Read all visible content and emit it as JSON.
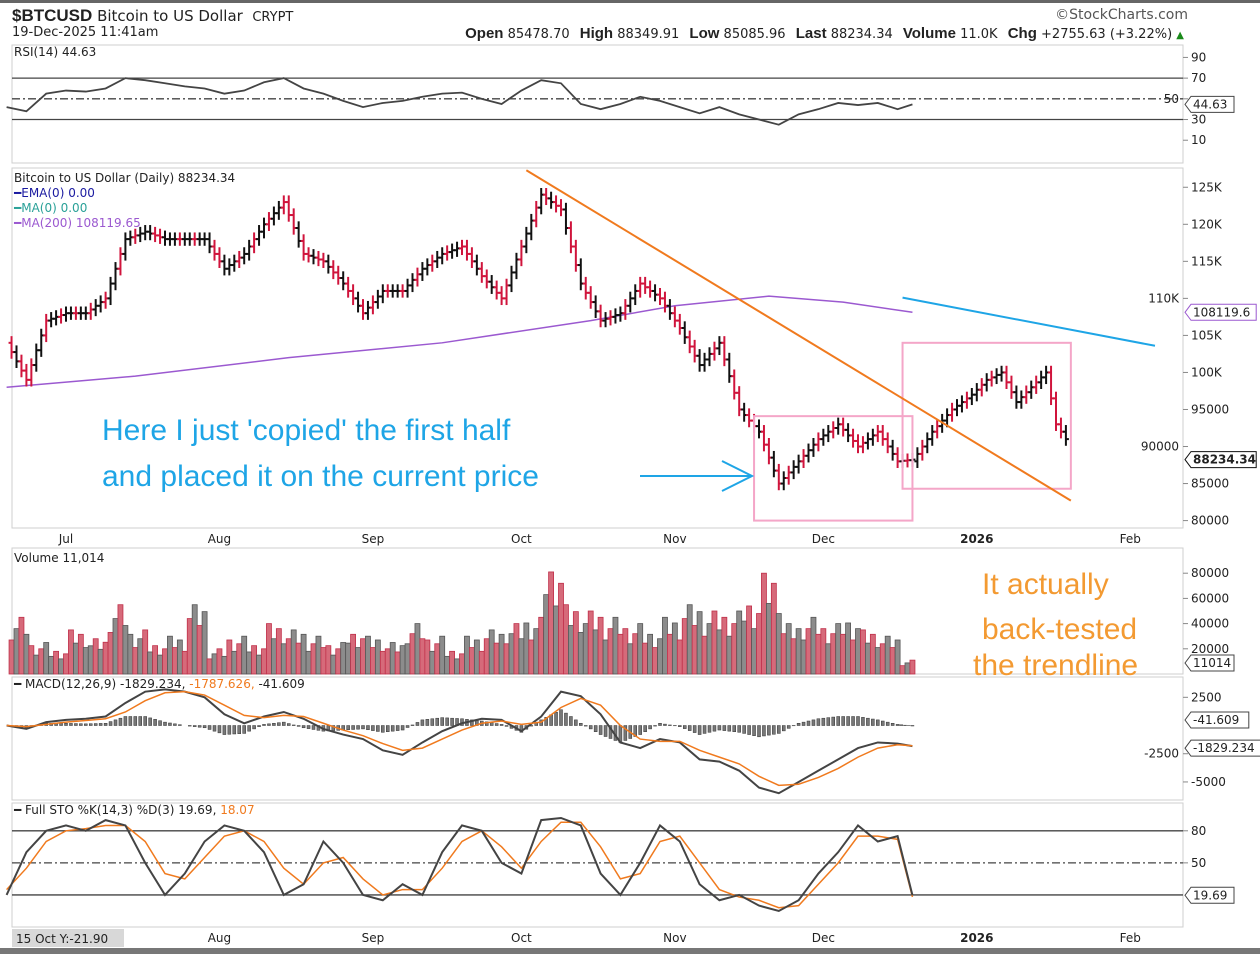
{
  "header": {
    "symbol": "$BTCUSD",
    "name": "Bitcoin to US Dollar",
    "exchange": "CRYPT",
    "datetime": "19-Dec-2025 11:41am",
    "brand": "©StockCharts.com",
    "open_label": "Open",
    "open": "85478.70",
    "high_label": "High",
    "high": "88349.91",
    "low_label": "Low",
    "low": "85085.96",
    "last_label": "Last",
    "last": "88234.34",
    "volume_label": "Volume",
    "volume": "11.0K",
    "chg_label": "Chg",
    "chg": "+2755.63 (+3.22%)",
    "chg_icon": "triangle-up-icon"
  },
  "legends": {
    "rsi": "RSI(14) 44.63",
    "price": "Bitcoin to US Dollar (Daily) 88234.34",
    "ema": "EMA(0) 0.00",
    "ma0": "MA(0) 0.00",
    "ma200": "MA(200) 108119.65",
    "volume": "Volume 11,014",
    "macd_a": "MACD(12,26,9) -1829.234,",
    "macd_b": "-1787.626,",
    "macd_c": "-41.609",
    "sto_a": "Full STO %K(14,3) %D(3) 19.69,",
    "sto_b": "18.07"
  },
  "annotations": {
    "blue_line1": "Here I just 'copied' the first half",
    "blue_line2": "and placed it on the current price",
    "orange_line1": "It actually",
    "orange_line2": "back-tested",
    "orange_line3": "the trendline"
  },
  "colors": {
    "up_bar": "#111111",
    "down_bar": "#d0143c",
    "ma200": "#9b59d0",
    "ema": "#1a1aa0",
    "ma0": "#2aa198",
    "trendline": "#f07a1e",
    "resistance_line": "#1ea5e6",
    "box": "#f4a6c8",
    "vol_up": "#8c8c8c",
    "vol_down": "#d66a7a",
    "signal": "#f07a1e"
  },
  "chart_data": [
    {
      "type": "ohlc",
      "title": "Bitcoin to US Dollar (Daily) 88234.34",
      "ylim": [
        79000,
        128000
      ],
      "yticks": [
        "125K",
        "120K",
        "115K",
        "110K",
        "105K",
        "100K",
        "95000",
        "90000",
        "85000",
        "80000"
      ],
      "ytick_values": [
        125000,
        120000,
        115000,
        110000,
        105000,
        100000,
        95000,
        90000,
        85000,
        80000
      ],
      "xticks": [
        "Jul",
        "Aug",
        "Sep",
        "Oct",
        "Nov",
        "Dec",
        "2026",
        "Feb"
      ],
      "xtick_dates": [
        "2025-07-01",
        "2025-08-01",
        "2025-09-01",
        "2025-10-01",
        "2025-11-01",
        "2025-12-01",
        "2026-01-01",
        "2026-02-01"
      ],
      "dates": [
        "2025-06-19",
        "2025-06-23",
        "2025-06-27",
        "2025-07-01",
        "2025-07-05",
        "2025-07-09",
        "2025-07-13",
        "2025-07-17",
        "2025-07-21",
        "2025-07-25",
        "2025-07-29",
        "2025-08-02",
        "2025-08-06",
        "2025-08-10",
        "2025-08-14",
        "2025-08-18",
        "2025-08-22",
        "2025-08-26",
        "2025-08-30",
        "2025-09-03",
        "2025-09-07",
        "2025-09-11",
        "2025-09-15",
        "2025-09-19",
        "2025-09-23",
        "2025-09-27",
        "2025-10-01",
        "2025-10-05",
        "2025-10-09",
        "2025-10-13",
        "2025-10-17",
        "2025-10-21",
        "2025-10-25",
        "2025-10-29",
        "2025-11-02",
        "2025-11-06",
        "2025-11-10",
        "2025-11-14",
        "2025-11-18",
        "2025-11-22",
        "2025-11-26",
        "2025-11-30",
        "2025-12-04",
        "2025-12-08",
        "2025-12-12",
        "2025-12-16",
        "2025-12-19"
      ],
      "close": [
        104000,
        99000,
        107000,
        108000,
        108000,
        110000,
        118000,
        119000,
        118000,
        118000,
        118000,
        114000,
        116000,
        120000,
        123000,
        116000,
        115000,
        112000,
        108000,
        111000,
        111000,
        114000,
        116000,
        117000,
        113000,
        110000,
        117000,
        124000,
        122000,
        112000,
        107000,
        108000,
        112000,
        110000,
        106000,
        101000,
        104000,
        95000,
        92000,
        85000,
        88000,
        91000,
        93000,
        90000,
        92000,
        88000,
        88234.34
      ],
      "last_label": "88234.34",
      "ma200": {
        "name": "MA(200)",
        "dates": [
          "2025-06-19",
          "2025-07-15",
          "2025-08-15",
          "2025-09-15",
          "2025-10-15",
          "2025-11-01",
          "2025-11-20",
          "2025-12-05",
          "2025-12-19"
        ],
        "values": [
          98000,
          99500,
          102000,
          104000,
          107000,
          109000,
          110300,
          109500,
          108120
        ],
        "last_label": "108119.6"
      },
      "copied_projection": {
        "dates": [
          "2025-12-19",
          "2025-12-23",
          "2025-12-27",
          "2025-12-31",
          "2026-01-03",
          "2026-01-06",
          "2026-01-09",
          "2026-01-12",
          "2026-01-15",
          "2026-01-17",
          "2026-01-19"
        ],
        "close": [
          88000,
          92000,
          95000,
          97000,
          99000,
          100000,
          96000,
          98000,
          100000,
          93000,
          91000
        ]
      },
      "trendline": {
        "from": [
          "2025-10-02",
          127300
        ],
        "to": [
          "2026-01-20",
          82700
        ]
      },
      "ma_extension_line": {
        "from": [
          "2025-12-17",
          110100
        ],
        "to": [
          "2026-02-06",
          103600
        ]
      },
      "boxes": [
        {
          "from": [
            "2025-11-17",
            94100
          ],
          "to": [
            "2025-12-19",
            80000
          ]
        },
        {
          "from": [
            "2025-12-17",
            104000
          ],
          "to": [
            "2026-01-20",
            84300
          ]
        }
      ]
    },
    {
      "type": "line",
      "title": "RSI(14) 44.63",
      "ylim": [
        0,
        100
      ],
      "yticks": [
        "90",
        "70",
        "50",
        "30",
        "10"
      ],
      "ytick_values": [
        90,
        70,
        50,
        30,
        10
      ],
      "values": [
        42,
        38,
        55,
        58,
        57,
        60,
        70,
        68,
        65,
        62,
        60,
        55,
        58,
        66,
        70,
        60,
        55,
        48,
        42,
        46,
        48,
        52,
        55,
        56,
        50,
        45,
        58,
        68,
        65,
        45,
        40,
        45,
        52,
        48,
        42,
        36,
        42,
        35,
        30,
        25,
        35,
        40,
        46,
        44,
        46,
        40,
        44.63
      ],
      "last_label": "44.63"
    },
    {
      "type": "bar",
      "title": "Volume 11,014",
      "ylim": [
        0,
        100000
      ],
      "yticks": [
        "80000",
        "60000",
        "40000",
        "20000"
      ],
      "ytick_values": [
        80000,
        60000,
        40000,
        20000
      ],
      "values": [
        30000,
        45000,
        25000,
        20000,
        35000,
        28000,
        55000,
        35000,
        25000,
        30000,
        55000,
        20000,
        30000,
        25000,
        40000,
        35000,
        30000,
        25000,
        35000,
        30000,
        25000,
        40000,
        30000,
        20000,
        30000,
        35000,
        40000,
        45000,
        90000,
        55000,
        50000,
        45000,
        40000,
        35000,
        45000,
        55000,
        50000,
        50000,
        60000,
        80000,
        40000,
        45000,
        40000,
        45000,
        35000,
        30000,
        11014
      ],
      "last_label": "11014"
    },
    {
      "type": "line",
      "title": "MACD(12,26,9)",
      "ylim": [
        -6500,
        4500
      ],
      "yticks": [
        "2500",
        "-2500",
        "-5000"
      ],
      "ytick_values": [
        2500,
        -2500,
        -5000
      ],
      "series": [
        {
          "name": "MACD",
          "values": [
            0,
            -300,
            300,
            500,
            600,
            800,
            2000,
            3000,
            3200,
            3000,
            2500,
            1000,
            200,
            800,
            1200,
            600,
            -300,
            -800,
            -1200,
            -2200,
            -2600,
            -1500,
            -500,
            200,
            600,
            500,
            -500,
            800,
            3000,
            2600,
            1000,
            -1500,
            -2000,
            -1200,
            -1500,
            -3000,
            -3200,
            -4000,
            -5500,
            -6000,
            -5000,
            -4000,
            -3000,
            -2000,
            -1500,
            -1600,
            -1829.234
          ]
        },
        {
          "name": "Signal",
          "values": [
            0,
            -100,
            100,
            300,
            450,
            600,
            1200,
            2200,
            2900,
            3000,
            2700,
            1800,
            900,
            700,
            900,
            800,
            200,
            -400,
            -900,
            -1600,
            -2200,
            -2000,
            -1200,
            -400,
            200,
            400,
            100,
            300,
            1600,
            2400,
            1800,
            0,
            -1200,
            -1400,
            -1400,
            -2200,
            -2800,
            -3400,
            -4500,
            -5300,
            -5200,
            -4600,
            -3800,
            -2800,
            -2000,
            -1700,
            -1787.626
          ]
        }
      ],
      "hist_label": "-41.609",
      "macd_label": "-1829.234"
    },
    {
      "type": "line",
      "title": "Full STO %K(14,3) %D(3)",
      "ylim": [
        0,
        100
      ],
      "yticks": [
        "80",
        "50"
      ],
      "ytick_values": [
        80,
        50
      ],
      "series": [
        {
          "name": "%K",
          "values": [
            20,
            60,
            80,
            85,
            80,
            90,
            85,
            50,
            20,
            40,
            70,
            85,
            80,
            60,
            20,
            30,
            70,
            50,
            20,
            15,
            30,
            20,
            60,
            85,
            80,
            50,
            40,
            90,
            92,
            85,
            40,
            20,
            50,
            85,
            70,
            30,
            15,
            20,
            10,
            5,
            15,
            40,
            60,
            85,
            70,
            75,
            19.69
          ]
        },
        {
          "name": "%D",
          "values": [
            25,
            45,
            70,
            80,
            82,
            85,
            85,
            70,
            40,
            35,
            55,
            75,
            80,
            70,
            45,
            30,
            50,
            55,
            35,
            20,
            25,
            25,
            45,
            70,
            80,
            65,
            45,
            70,
            88,
            88,
            65,
            35,
            40,
            70,
            75,
            50,
            25,
            18,
            15,
            8,
            10,
            30,
            50,
            75,
            75,
            72,
            18.07
          ]
        }
      ],
      "last_label": "19.69",
      "xticks": [
        "Aug",
        "Sep",
        "Oct",
        "Nov",
        "Dec",
        "2026",
        "Feb"
      ],
      "xtick_dates": [
        "2025-08-01",
        "2025-09-01",
        "2025-10-01",
        "2025-11-01",
        "2025-12-01",
        "2026-01-01",
        "2026-02-01"
      ],
      "cursor_readout": "15 Oct Y:-21.90"
    }
  ]
}
